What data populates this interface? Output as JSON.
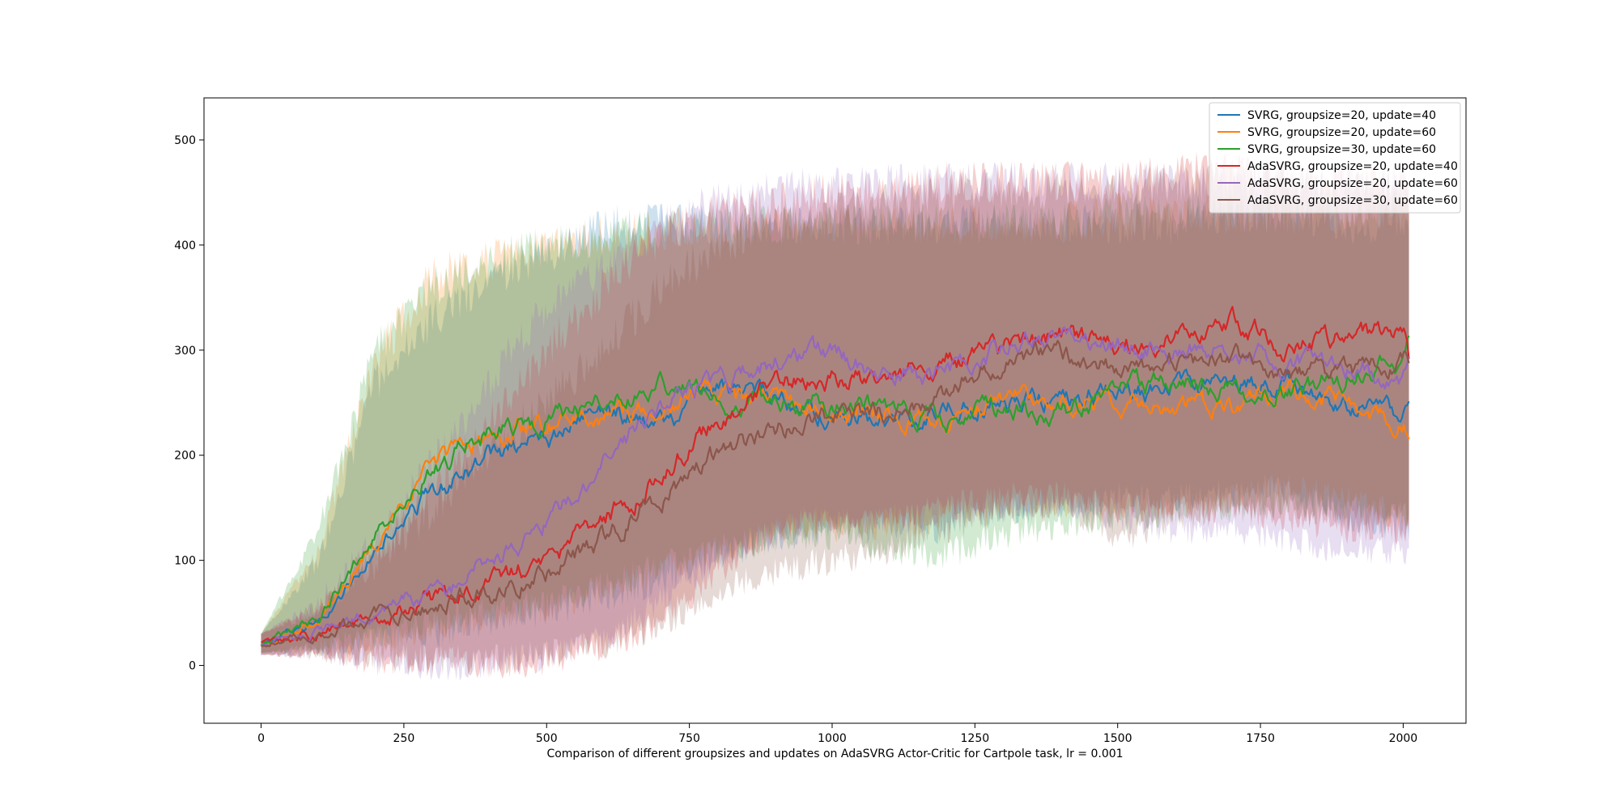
{
  "chart_data": {
    "type": "line",
    "title": "",
    "xlabel": "Comparison of different groupsizes and updates on AdaSVRG Actor-Critic for Cartpole task, lr = 0.001",
    "ylabel": "",
    "xlim": [
      -100,
      2110
    ],
    "ylim": [
      -55,
      540
    ],
    "xticks": [
      0,
      250,
      500,
      750,
      1000,
      1250,
      1500,
      1750,
      2000
    ],
    "yticks": [
      0,
      100,
      200,
      300,
      400,
      500
    ],
    "grid": false,
    "legend_position": "top-right",
    "shaded_band": "mean ± spread per series",
    "series": [
      {
        "name": "SVRG, groupsize=20, update=40",
        "color": "#1f77b4",
        "x": [
          0,
          100,
          200,
          300,
          400,
          500,
          600,
          700,
          800,
          900,
          1000,
          1100,
          1200,
          1300,
          1400,
          1500,
          1600,
          1700,
          1800,
          1900,
          2000,
          2010
        ],
        "y": [
          20,
          38,
          110,
          165,
          200,
          215,
          245,
          225,
          265,
          255,
          240,
          230,
          245,
          255,
          255,
          260,
          260,
          265,
          275,
          255,
          240,
          250
        ],
        "lower": [
          12,
          15,
          25,
          30,
          40,
          50,
          65,
          80,
          105,
          120,
          130,
          130,
          130,
          145,
          150,
          160,
          160,
          165,
          170,
          140,
          130,
          130
        ],
        "upper": [
          30,
          100,
          270,
          330,
          370,
          390,
          420,
          420,
          420,
          420,
          420,
          420,
          420,
          420,
          420,
          420,
          420,
          430,
          430,
          420,
          420,
          420
        ]
      },
      {
        "name": "SVRG, groupsize=20, update=60",
        "color": "#ff7f0e",
        "x": [
          0,
          100,
          200,
          300,
          400,
          500,
          600,
          700,
          800,
          900,
          1000,
          1100,
          1200,
          1300,
          1400,
          1500,
          1600,
          1700,
          1800,
          1900,
          2000,
          2010
        ],
        "y": [
          20,
          40,
          115,
          190,
          220,
          230,
          240,
          245,
          255,
          250,
          240,
          235,
          230,
          255,
          245,
          255,
          245,
          250,
          260,
          250,
          230,
          230
        ],
        "lower": [
          12,
          15,
          25,
          35,
          45,
          55,
          70,
          90,
          110,
          125,
          130,
          135,
          140,
          150,
          155,
          150,
          150,
          160,
          170,
          160,
          140,
          140
        ],
        "upper": [
          30,
          110,
          290,
          370,
          385,
          395,
          410,
          415,
          415,
          420,
          420,
          420,
          420,
          420,
          420,
          430,
          430,
          430,
          430,
          430,
          430,
          430
        ]
      },
      {
        "name": "SVRG, groupsize=30, update=60",
        "color": "#2ca02c",
        "x": [
          0,
          100,
          200,
          300,
          400,
          500,
          600,
          700,
          800,
          900,
          1000,
          1100,
          1200,
          1300,
          1400,
          1500,
          1600,
          1700,
          1800,
          1900,
          2000,
          2010
        ],
        "y": [
          20,
          45,
          125,
          185,
          225,
          235,
          245,
          270,
          255,
          250,
          250,
          245,
          235,
          245,
          240,
          265,
          270,
          265,
          260,
          275,
          290,
          305
        ],
        "lower": [
          12,
          18,
          30,
          40,
          50,
          60,
          75,
          95,
          110,
          120,
          125,
          110,
          105,
          125,
          135,
          140,
          145,
          150,
          155,
          150,
          145,
          145
        ],
        "upper": [
          30,
          130,
          300,
          360,
          385,
          400,
          405,
          415,
          420,
          420,
          420,
          420,
          420,
          420,
          420,
          430,
          430,
          430,
          430,
          430,
          440,
          440
        ]
      },
      {
        "name": "AdaSVRG, groupsize=20, update=40",
        "color": "#d62728",
        "x": [
          0,
          100,
          200,
          300,
          400,
          500,
          600,
          700,
          800,
          900,
          1000,
          1100,
          1200,
          1300,
          1400,
          1500,
          1600,
          1700,
          1800,
          1900,
          2000,
          2010
        ],
        "y": [
          20,
          30,
          45,
          60,
          80,
          100,
          140,
          180,
          235,
          270,
          275,
          270,
          290,
          300,
          315,
          300,
          315,
          330,
          300,
          310,
          320,
          290
        ],
        "lower": [
          10,
          10,
          5,
          5,
          0,
          5,
          15,
          40,
          90,
          130,
          140,
          140,
          150,
          160,
          160,
          150,
          150,
          150,
          140,
          130,
          130,
          130
        ],
        "upper": [
          30,
          55,
          110,
          160,
          230,
          300,
          360,
          410,
          430,
          440,
          450,
          450,
          460,
          460,
          460,
          460,
          470,
          470,
          460,
          460,
          460,
          460
        ]
      },
      {
        "name": "AdaSVRG, groupsize=20, update=60",
        "color": "#9467bd",
        "x": [
          0,
          100,
          200,
          300,
          400,
          500,
          600,
          700,
          800,
          900,
          1000,
          1100,
          1200,
          1300,
          1400,
          1500,
          1600,
          1700,
          1800,
          1900,
          2000,
          2010
        ],
        "y": [
          20,
          32,
          50,
          70,
          95,
          135,
          190,
          245,
          270,
          290,
          300,
          275,
          280,
          300,
          310,
          305,
          300,
          305,
          290,
          285,
          270,
          290
        ],
        "lower": [
          10,
          10,
          5,
          0,
          0,
          10,
          25,
          60,
          100,
          130,
          140,
          140,
          145,
          150,
          150,
          140,
          130,
          130,
          120,
          110,
          110,
          110
        ],
        "upper": [
          30,
          60,
          120,
          190,
          270,
          340,
          380,
          420,
          440,
          450,
          460,
          460,
          460,
          460,
          460,
          460,
          460,
          460,
          460,
          460,
          460,
          460
        ]
      },
      {
        "name": "AdaSVRG, groupsize=30, update=60",
        "color": "#8c564b",
        "x": [
          0,
          100,
          200,
          300,
          400,
          500,
          600,
          700,
          800,
          900,
          1000,
          1100,
          1200,
          1300,
          1400,
          1500,
          1600,
          1700,
          1800,
          1900,
          2000,
          2010
        ],
        "y": [
          20,
          30,
          45,
          60,
          70,
          90,
          120,
          160,
          200,
          225,
          240,
          240,
          260,
          295,
          300,
          280,
          290,
          295,
          280,
          275,
          290,
          290
        ],
        "lower": [
          10,
          10,
          8,
          5,
          5,
          10,
          20,
          40,
          70,
          90,
          100,
          110,
          130,
          150,
          150,
          120,
          140,
          150,
          150,
          140,
          140,
          140
        ],
        "upper": [
          30,
          55,
          100,
          150,
          200,
          250,
          300,
          360,
          400,
          420,
          430,
          440,
          450,
          450,
          450,
          450,
          460,
          460,
          460,
          450,
          450,
          450
        ]
      }
    ]
  }
}
